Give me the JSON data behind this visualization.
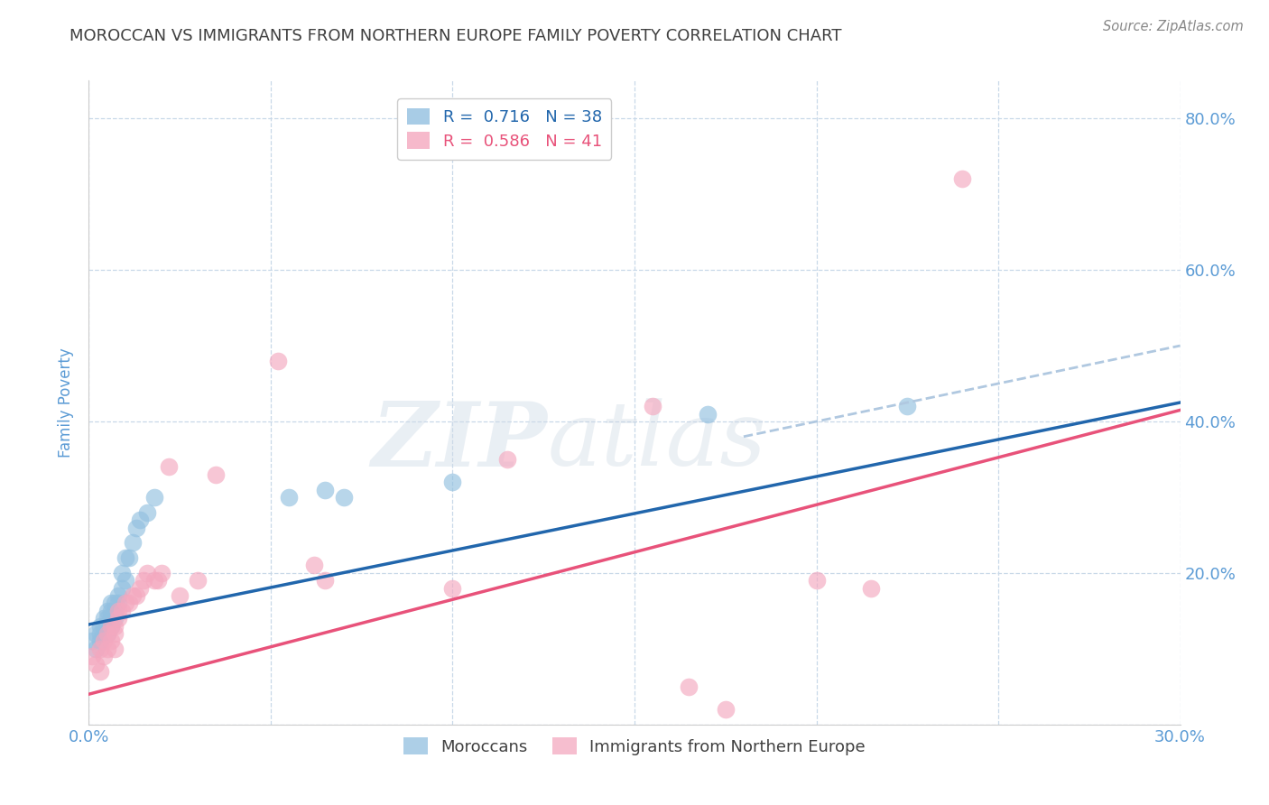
{
  "title": "MOROCCAN VS IMMIGRANTS FROM NORTHERN EUROPE FAMILY POVERTY CORRELATION CHART",
  "source": "Source: ZipAtlas.com",
  "xlabel": "",
  "ylabel": "Family Poverty",
  "xlim": [
    0.0,
    0.3
  ],
  "ylim": [
    0.0,
    0.85
  ],
  "x_ticks": [
    0.0,
    0.05,
    0.1,
    0.15,
    0.2,
    0.25,
    0.3
  ],
  "x_tick_labels": [
    "0.0%",
    "",
    "",
    "",
    "",
    "",
    "30.0%"
  ],
  "y_ticks": [
    0.0,
    0.2,
    0.4,
    0.6,
    0.8
  ],
  "y_tick_labels_right": [
    "",
    "20.0%",
    "40.0%",
    "60.0%",
    "80.0%"
  ],
  "moroccan_R": "0.716",
  "moroccan_N": "38",
  "northern_europe_R": "0.586",
  "northern_europe_N": "41",
  "blue_color": "#92c0e0",
  "pink_color": "#f4a8bf",
  "blue_line_color": "#2166ac",
  "pink_line_color": "#e8527a",
  "blue_dashed_color": "#b0c8e0",
  "legend_label_blue": "Moroccans",
  "legend_label_pink": "Immigrants from Northern Europe",
  "moroccan_x": [
    0.001,
    0.002,
    0.002,
    0.003,
    0.003,
    0.003,
    0.004,
    0.004,
    0.004,
    0.005,
    0.005,
    0.005,
    0.005,
    0.006,
    0.006,
    0.006,
    0.006,
    0.007,
    0.007,
    0.007,
    0.008,
    0.008,
    0.009,
    0.009,
    0.01,
    0.01,
    0.011,
    0.012,
    0.013,
    0.014,
    0.016,
    0.018,
    0.055,
    0.065,
    0.07,
    0.1,
    0.17,
    0.225
  ],
  "moroccan_y": [
    0.11,
    0.1,
    0.12,
    0.11,
    0.12,
    0.13,
    0.12,
    0.13,
    0.14,
    0.12,
    0.13,
    0.14,
    0.15,
    0.13,
    0.14,
    0.15,
    0.16,
    0.14,
    0.15,
    0.16,
    0.16,
    0.17,
    0.18,
    0.2,
    0.19,
    0.22,
    0.22,
    0.24,
    0.26,
    0.27,
    0.28,
    0.3,
    0.3,
    0.31,
    0.3,
    0.32,
    0.41,
    0.42
  ],
  "northern_x": [
    0.001,
    0.002,
    0.003,
    0.003,
    0.004,
    0.004,
    0.005,
    0.005,
    0.006,
    0.006,
    0.007,
    0.007,
    0.007,
    0.008,
    0.008,
    0.009,
    0.01,
    0.011,
    0.012,
    0.013,
    0.014,
    0.015,
    0.016,
    0.018,
    0.019,
    0.02,
    0.022,
    0.025,
    0.03,
    0.035,
    0.052,
    0.062,
    0.065,
    0.1,
    0.115,
    0.155,
    0.165,
    0.175,
    0.2,
    0.215,
    0.24
  ],
  "northern_y": [
    0.09,
    0.08,
    0.07,
    0.1,
    0.09,
    0.11,
    0.1,
    0.12,
    0.11,
    0.13,
    0.1,
    0.12,
    0.13,
    0.14,
    0.15,
    0.15,
    0.16,
    0.16,
    0.17,
    0.17,
    0.18,
    0.19,
    0.2,
    0.19,
    0.19,
    0.2,
    0.34,
    0.17,
    0.19,
    0.33,
    0.48,
    0.21,
    0.19,
    0.18,
    0.35,
    0.42,
    0.05,
    0.02,
    0.19,
    0.18,
    0.72
  ],
  "blue_line_x0": 0.0,
  "blue_line_y0": 0.132,
  "blue_line_x1": 0.3,
  "blue_line_y1": 0.425,
  "pink_line_x0": 0.0,
  "pink_line_y0": 0.04,
  "pink_line_x1": 0.3,
  "pink_line_y1": 0.415,
  "dashed_line_x0": 0.18,
  "dashed_line_y0": 0.38,
  "dashed_line_x1": 0.3,
  "dashed_line_y1": 0.5,
  "watermark_zip": "ZIP",
  "watermark_atlas": "atlas",
  "background_color": "#ffffff",
  "grid_color": "#c8d8e8",
  "title_color": "#404040",
  "axis_label_color": "#5b9bd5",
  "tick_label_color": "#5b9bd5"
}
